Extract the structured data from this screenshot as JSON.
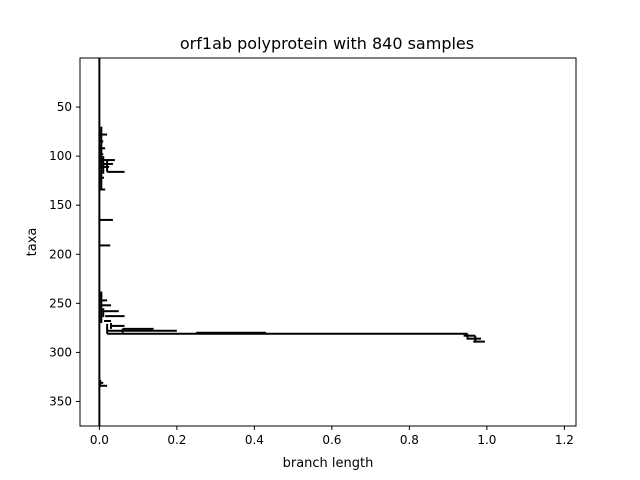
{
  "chart_data": {
    "type": "tree",
    "title": "orf1ab polyprotein with 840 samples",
    "xlabel": "branch length",
    "ylabel": "taxa",
    "xlim": [
      -0.05,
      1.23
    ],
    "ylim": [
      375,
      0
    ],
    "x_ticks": [
      0.0,
      0.2,
      0.4,
      0.6,
      0.8,
      1.0,
      1.2
    ],
    "x_tick_labels": [
      "0.0",
      "0.2",
      "0.4",
      "0.6",
      "0.8",
      "1.0",
      "1.2"
    ],
    "y_ticks": [
      50,
      100,
      150,
      200,
      250,
      300,
      350
    ],
    "y_tick_labels": [
      "50",
      "100",
      "150",
      "200",
      "250",
      "300",
      "350"
    ],
    "grid": false,
    "branches": [
      {
        "y": 78,
        "x0": 0.0,
        "x1": 0.02
      },
      {
        "y": 85,
        "x0": 0.0,
        "x1": 0.01
      },
      {
        "y": 92,
        "x0": 0.0,
        "x1": 0.015
      },
      {
        "y": 98,
        "x0": 0.0,
        "x1": 0.01
      },
      {
        "y": 104,
        "x0": 0.005,
        "x1": 0.04
      },
      {
        "y": 108,
        "x0": 0.01,
        "x1": 0.035
      },
      {
        "y": 111,
        "x0": 0.005,
        "x1": 0.025
      },
      {
        "y": 116,
        "x0": 0.02,
        "x1": 0.065
      },
      {
        "y": 122,
        "x0": 0.0,
        "x1": 0.012
      },
      {
        "y": 134,
        "x0": 0.0,
        "x1": 0.015
      },
      {
        "y": 165,
        "x0": 0.0,
        "x1": 0.035
      },
      {
        "y": 191,
        "x0": 0.0,
        "x1": 0.028
      },
      {
        "y": 242,
        "x0": 0.0,
        "x1": 0.008
      },
      {
        "y": 247,
        "x0": 0.002,
        "x1": 0.02
      },
      {
        "y": 252,
        "x0": 0.005,
        "x1": 0.03
      },
      {
        "y": 258,
        "x0": 0.01,
        "x1": 0.05
      },
      {
        "y": 263,
        "x0": 0.015,
        "x1": 0.065
      },
      {
        "y": 268,
        "x0": 0.012,
        "x1": 0.03
      },
      {
        "y": 273,
        "x0": 0.03,
        "x1": 0.065
      },
      {
        "y": 276,
        "x0": 0.06,
        "x1": 0.14
      },
      {
        "y": 278,
        "x0": 0.02,
        "x1": 0.2
      },
      {
        "y": 280,
        "x0": 0.25,
        "x1": 0.43
      },
      {
        "y": 281,
        "x0": 0.02,
        "x1": 0.95
      },
      {
        "y": 283,
        "x0": 0.94,
        "x1": 0.97
      },
      {
        "y": 286,
        "x0": 0.95,
        "x1": 0.985
      },
      {
        "y": 289,
        "x0": 0.965,
        "x1": 0.995
      },
      {
        "y": 331,
        "x0": 0.0,
        "x1": 0.01
      },
      {
        "y": 334,
        "x0": 0.002,
        "x1": 0.02
      }
    ],
    "connectors": [
      {
        "x": 0.0,
        "y0": 0,
        "y1": 375
      },
      {
        "x": 0.005,
        "y0": 70,
        "y1": 135
      },
      {
        "x": 0.01,
        "y0": 100,
        "y1": 118
      },
      {
        "x": 0.02,
        "y0": 104,
        "y1": 116
      },
      {
        "x": 0.005,
        "y0": 238,
        "y1": 270
      },
      {
        "x": 0.01,
        "y0": 255,
        "y1": 264
      },
      {
        "x": 0.02,
        "y0": 271,
        "y1": 281
      },
      {
        "x": 0.03,
        "y0": 270,
        "y1": 276
      },
      {
        "x": 0.06,
        "y0": 276,
        "y1": 280
      },
      {
        "x": 0.95,
        "y0": 281,
        "y1": 287
      },
      {
        "x": 0.97,
        "y0": 283,
        "y1": 290
      },
      {
        "x": 0.002,
        "y0": 328,
        "y1": 335
      }
    ]
  }
}
